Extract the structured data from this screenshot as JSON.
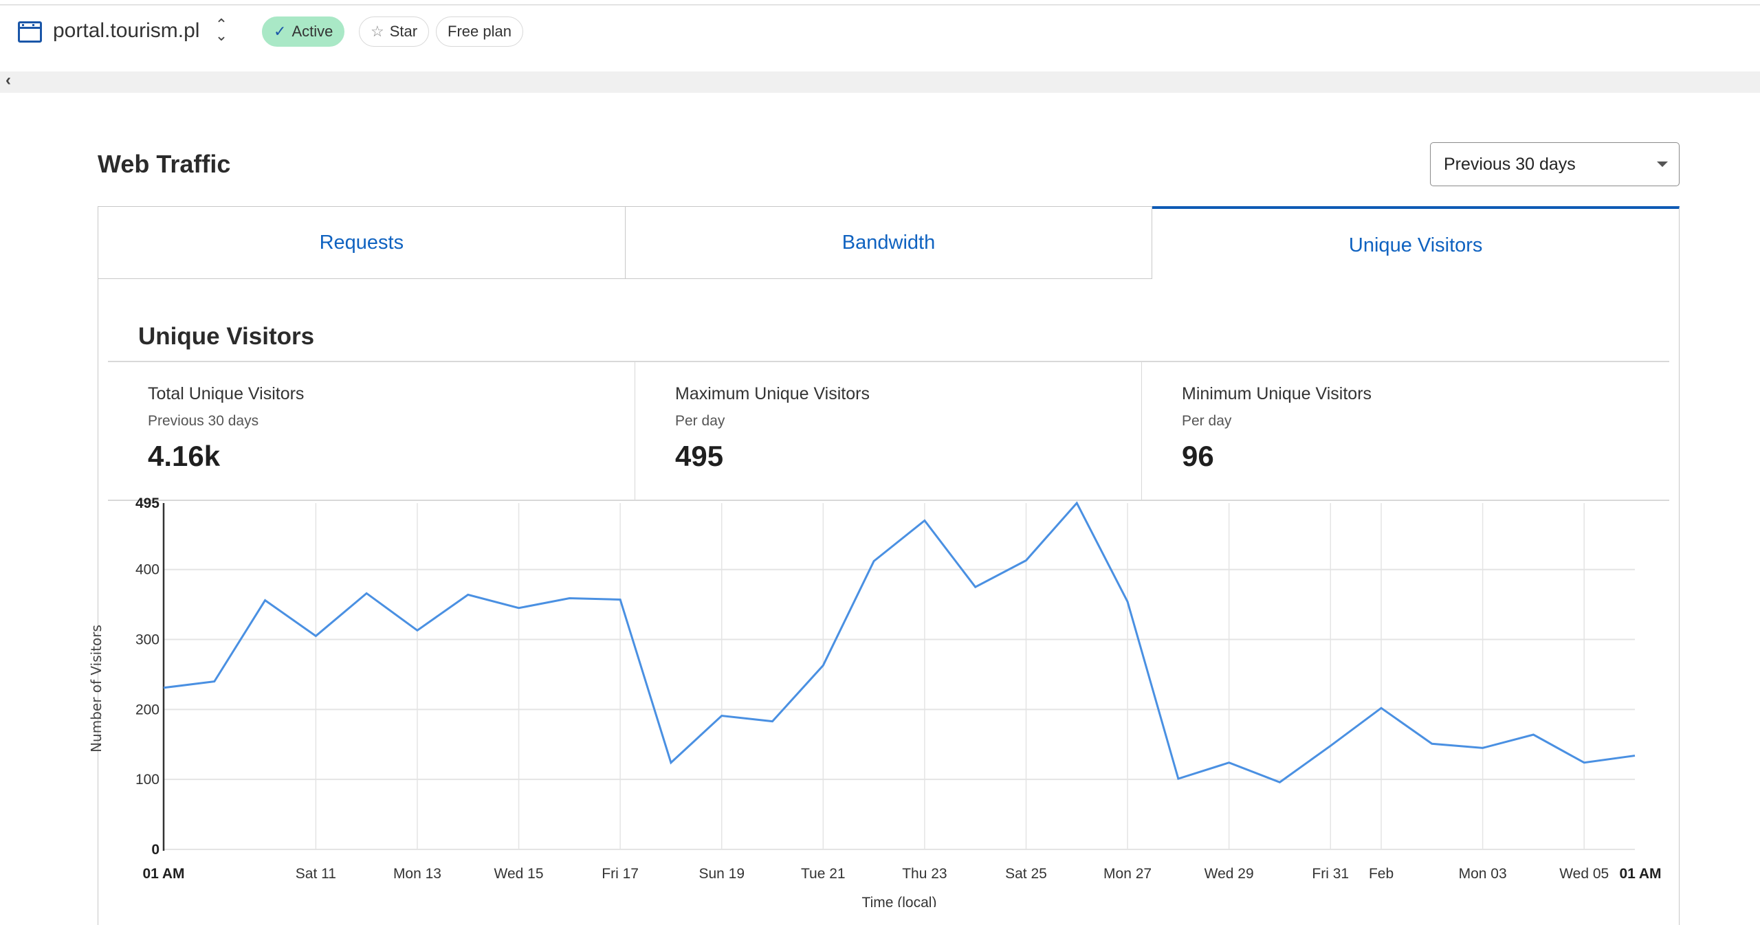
{
  "header": {
    "site": "portal.tourism.pl",
    "status": "Active",
    "star": "Star",
    "plan": "Free plan"
  },
  "page": {
    "title": "Web Traffic",
    "range": "Previous 30 days"
  },
  "tabs": [
    {
      "label": "Requests"
    },
    {
      "label": "Bandwidth"
    },
    {
      "label": "Unique Visitors"
    }
  ],
  "section": {
    "title": "Unique Visitors"
  },
  "stats": [
    {
      "title": "Total Unique Visitors",
      "sub": "Previous 30 days",
      "value": "4.16k"
    },
    {
      "title": "Maximum Unique Visitors",
      "sub": "Per day",
      "value": "495"
    },
    {
      "title": "Minimum Unique Visitors",
      "sub": "Per day",
      "value": "96"
    }
  ],
  "colors": {
    "line": "#4a90e2",
    "accent": "#0f5bb5",
    "active": "#a9e8c6"
  },
  "chart_data": {
    "type": "line",
    "xlabel": "Time (local)",
    "ylabel": "Number of Visitors",
    "ylim": [
      0,
      495
    ],
    "y_ticks": [
      {
        "v": 0,
        "label": "0",
        "bold": true
      },
      {
        "v": 100,
        "label": "100"
      },
      {
        "v": 200,
        "label": "200"
      },
      {
        "v": 300,
        "label": "300"
      },
      {
        "v": 400,
        "label": "400"
      },
      {
        "v": 495,
        "label": "495",
        "bold": true
      }
    ],
    "x_ticks": [
      {
        "at": 0,
        "label": "01 AM",
        "bold": true
      },
      {
        "at": 3,
        "label": "Sat 11"
      },
      {
        "at": 5,
        "label": "Mon 13"
      },
      {
        "at": 7,
        "label": "Wed 15"
      },
      {
        "at": 9,
        "label": "Fri 17"
      },
      {
        "at": 11,
        "label": "Sun 19"
      },
      {
        "at": 13,
        "label": "Tue 21"
      },
      {
        "at": 15,
        "label": "Thu 23"
      },
      {
        "at": 17,
        "label": "Sat 25"
      },
      {
        "at": 19,
        "label": "Mon 27"
      },
      {
        "at": 21,
        "label": "Wed 29"
      },
      {
        "at": 23,
        "label": "Fri 31"
      },
      {
        "at": 24,
        "label": "Feb"
      },
      {
        "at": 26,
        "label": "Mon 03"
      },
      {
        "at": 28,
        "label": "Wed 05"
      },
      {
        "at": 29,
        "label": "01 AM",
        "bold": true
      }
    ],
    "series": [
      {
        "name": "Unique Visitors",
        "values": [
          231,
          240,
          356,
          305,
          366,
          313,
          364,
          345,
          359,
          357,
          124,
          191,
          183,
          263,
          412,
          470,
          375,
          413,
          495,
          354,
          101,
          124,
          96,
          148,
          202,
          151,
          145,
          164,
          124,
          134
        ]
      }
    ]
  }
}
